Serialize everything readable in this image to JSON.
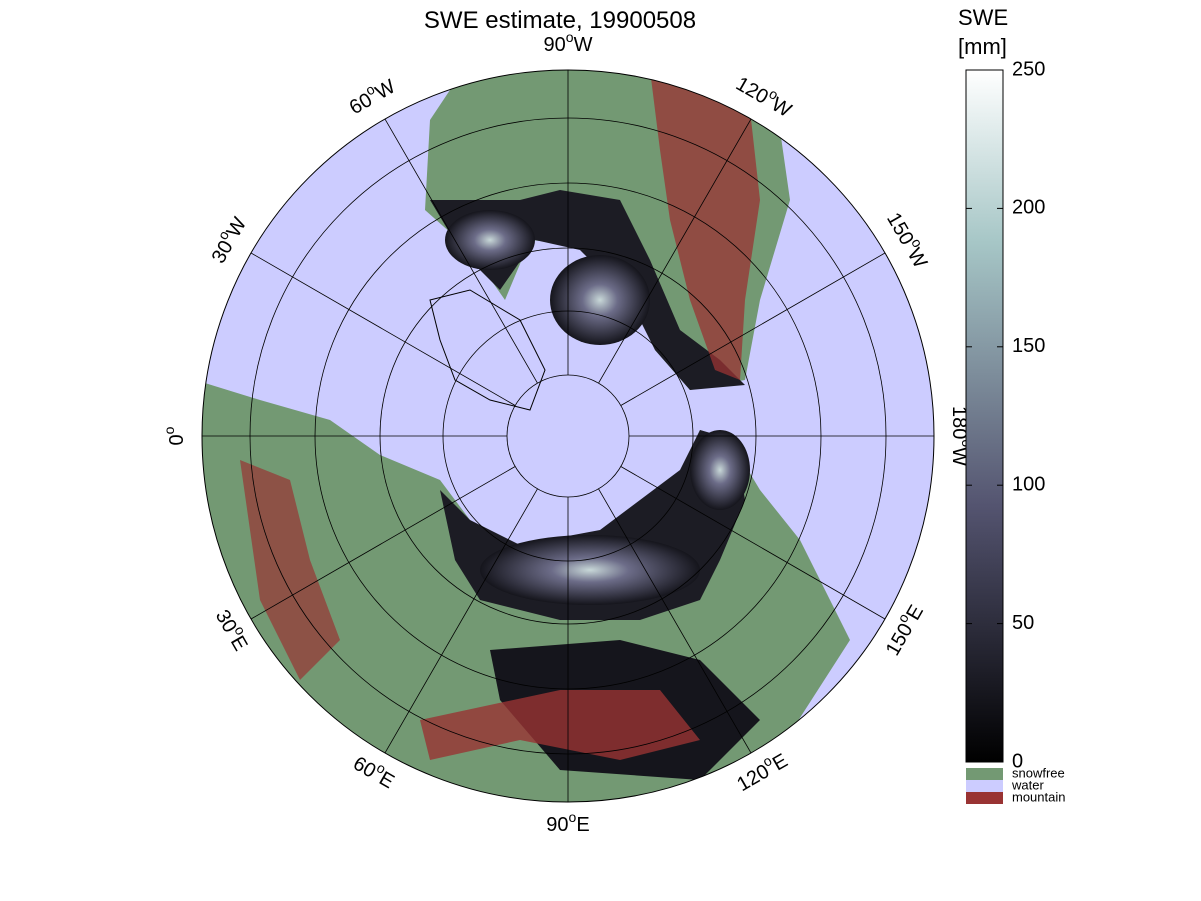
{
  "title": "SWE estimate, 19900508",
  "map": {
    "longitude_labels": [
      {
        "deg": "0",
        "sup": "o"
      },
      {
        "deg": "30",
        "sup": "o",
        "dir": "E"
      },
      {
        "deg": "60",
        "sup": "o",
        "dir": "E"
      },
      {
        "deg": "90",
        "sup": "o",
        "dir": "E"
      },
      {
        "deg": "120",
        "sup": "o",
        "dir": "E"
      },
      {
        "deg": "150",
        "sup": "o",
        "dir": "E"
      },
      {
        "deg": "180",
        "sup": "o",
        "dir": "W"
      },
      {
        "deg": "150",
        "sup": "o",
        "dir": "W"
      },
      {
        "deg": "120",
        "sup": "o",
        "dir": "W"
      },
      {
        "deg": "90",
        "sup": "o",
        "dir": "W"
      },
      {
        "deg": "60",
        "sup": "o",
        "dir": "W"
      },
      {
        "deg": "30",
        "sup": "o",
        "dir": "W"
      }
    ]
  },
  "colorbar": {
    "label": [
      "SWE",
      "[mm]"
    ],
    "ylim": [
      0,
      250
    ],
    "yticks": [
      0,
      50,
      100,
      150,
      200,
      250
    ]
  },
  "legend": [
    {
      "name": "snowfree",
      "color": "#739973"
    },
    {
      "name": "water",
      "color": "#ccccff"
    },
    {
      "name": "mountain",
      "color": "#993333"
    }
  ]
}
